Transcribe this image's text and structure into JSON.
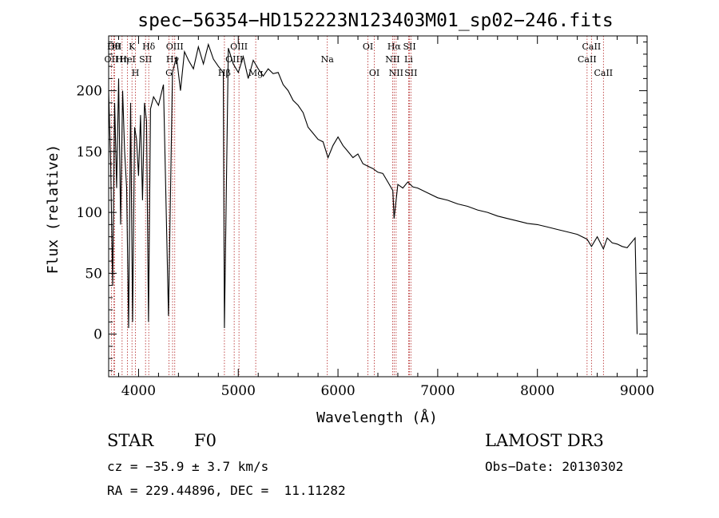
{
  "chart_data": {
    "type": "line",
    "title": "spec−56354−HD152223N123403M01_sp02−246.fits",
    "xlabel": "Wavelength (Å)",
    "ylabel": "Flux (relative)",
    "xlim": [
      3700,
      9100
    ],
    "ylim": [
      -35,
      245
    ],
    "xticks": [
      4000,
      5000,
      6000,
      7000,
      8000,
      9000
    ],
    "yticks": [
      0,
      50,
      100,
      150,
      200
    ],
    "series": [
      {
        "name": "flux",
        "x": [
          3700,
          3720,
          3740,
          3760,
          3780,
          3800,
          3820,
          3840,
          3860,
          3880,
          3900,
          3920,
          3940,
          3960,
          3980,
          4000,
          4020,
          4040,
          4060,
          4080,
          4100,
          4120,
          4150,
          4200,
          4250,
          4300,
          4340,
          4380,
          4420,
          4460,
          4500,
          4550,
          4600,
          4650,
          4700,
          4750,
          4800,
          4850,
          4861,
          4900,
          4950,
          5000,
          5050,
          5100,
          5150,
          5200,
          5250,
          5300,
          5350,
          5400,
          5450,
          5500,
          5550,
          5600,
          5650,
          5700,
          5750,
          5800,
          5850,
          5900,
          5950,
          6000,
          6050,
          6100,
          6150,
          6200,
          6250,
          6300,
          6350,
          6400,
          6450,
          6500,
          6550,
          6563,
          6600,
          6650,
          6700,
          6750,
          6800,
          6900,
          7000,
          7100,
          7200,
          7300,
          7400,
          7500,
          7600,
          7700,
          7800,
          7900,
          8000,
          8100,
          8200,
          8300,
          8400,
          8498,
          8542,
          8600,
          8662,
          8700,
          8750,
          8800,
          8850,
          8900,
          8950,
          8980,
          9000
        ],
        "y": [
          200,
          140,
          40,
          190,
          120,
          210,
          90,
          200,
          150,
          120,
          5,
          190,
          10,
          170,
          160,
          130,
          180,
          110,
          190,
          175,
          10,
          185,
          195,
          188,
          205,
          15,
          215,
          228,
          200,
          232,
          225,
          218,
          236,
          222,
          238,
          226,
          220,
          215,
          5,
          235,
          222,
          215,
          228,
          210,
          225,
          218,
          212,
          218,
          214,
          215,
          205,
          200,
          192,
          188,
          182,
          170,
          165,
          160,
          158,
          145,
          155,
          162,
          155,
          150,
          145,
          148,
          140,
          138,
          136,
          133,
          132,
          125,
          118,
          95,
          123,
          120,
          125,
          121,
          120,
          116,
          112,
          110,
          107,
          105,
          102,
          100,
          97,
          95,
          93,
          91,
          90,
          88,
          86,
          84,
          82,
          78,
          72,
          80,
          70,
          79,
          75,
          74,
          72,
          71,
          76,
          79,
          0
        ]
      }
    ],
    "lines": [
      {
        "name": "OII",
        "w": 3727,
        "row": 2
      },
      {
        "name": "Hθ",
        "w": 3750,
        "row": 1
      },
      {
        "name": "OII",
        "w": 3760,
        "row": 1
      },
      {
        "name": "Hη",
        "w": 3835,
        "row": 2
      },
      {
        "name": "HeI",
        "w": 3889,
        "row": 2
      },
      {
        "name": "K",
        "w": 3934,
        "row": 1
      },
      {
        "name": "H",
        "w": 3969,
        "row": 3
      },
      {
        "name": "SII",
        "w": 4070,
        "row": 2
      },
      {
        "name": "Hδ",
        "w": 4102,
        "row": 1
      },
      {
        "name": "G",
        "w": 4305,
        "row": 3
      },
      {
        "name": "Hγ",
        "w": 4341,
        "row": 2
      },
      {
        "name": "OIII",
        "w": 4363,
        "row": 1
      },
      {
        "name": "Hβ",
        "w": 4861,
        "row": 3
      },
      {
        "name": "OIII",
        "w": 4959,
        "row": 2
      },
      {
        "name": "OIII",
        "w": 5007,
        "row": 1
      },
      {
        "name": "Mg",
        "w": 5175,
        "row": 3
      },
      {
        "name": "Na",
        "w": 5893,
        "row": 2
      },
      {
        "name": "OI",
        "w": 6300,
        "row": 1
      },
      {
        "name": "OI",
        "w": 6364,
        "row": 3
      },
      {
        "name": "NII",
        "w": 6548,
        "row": 2
      },
      {
        "name": "Hα",
        "w": 6563,
        "row": 1
      },
      {
        "name": "NII",
        "w": 6583,
        "row": 3
      },
      {
        "name": "SII",
        "w": 6717,
        "row": 1
      },
      {
        "name": "Li",
        "w": 6708,
        "row": 2
      },
      {
        "name": "SII",
        "w": 6731,
        "row": 3
      },
      {
        "name": "CaII",
        "w": 8498,
        "row": 2
      },
      {
        "name": "CaII",
        "w": 8542,
        "row": 1
      },
      {
        "name": "CaII",
        "w": 8662,
        "row": 3
      }
    ]
  },
  "info": {
    "object_class": "STAR",
    "subclass": "F0",
    "survey": "LAMOST DR3",
    "cz": "cz = −35.9 ± 3.7 km/s",
    "obs_date": "Obs−Date: 20130302",
    "coords": "RA = 229.44896, DEC =  11.11282"
  },
  "colors": {
    "spectrum": "#000000",
    "line_marker": "#b22222",
    "axis": "#000000"
  }
}
